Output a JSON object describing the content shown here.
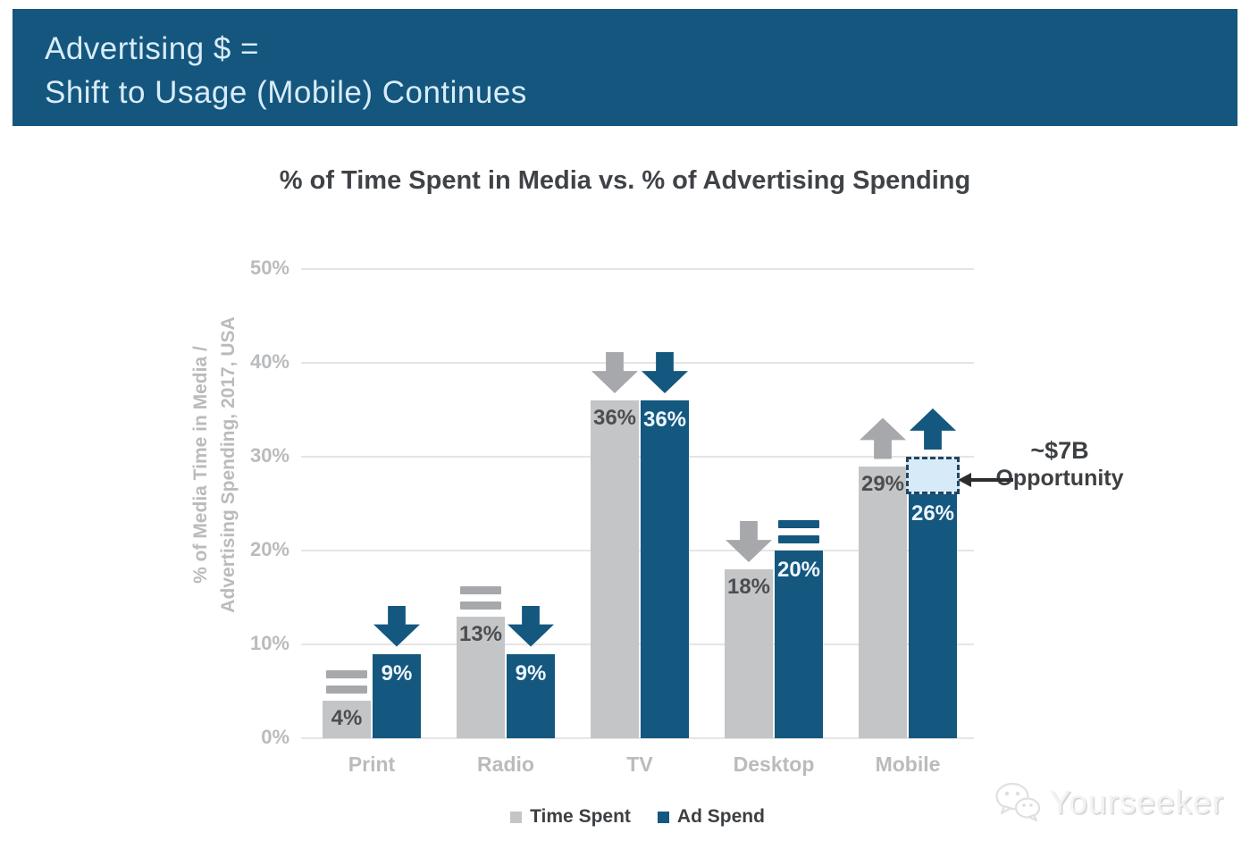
{
  "banner": {
    "line1": "Advertising $ =",
    "line2": "Shift to Usage (Mobile) Continues",
    "bg_color": "#14567d",
    "text_color": "#d8ecf8"
  },
  "chart_data": {
    "type": "bar",
    "title": "% of Time Spent in Media vs. % of Advertising Spending",
    "ylabel": "% of Media Time in Media / Advertising Spending, 2017, USA",
    "ylabel_lines": [
      "% of Media Time in Media /",
      "Advertising Spending, 2017, USA"
    ],
    "categories": [
      "Print",
      "Radio",
      "TV",
      "Desktop",
      "Mobile"
    ],
    "series": [
      {
        "name": "Time Spent",
        "color": "#c4c5c7",
        "label_color": "#4b4e51",
        "values": [
          4,
          13,
          36,
          18,
          29
        ],
        "trends": [
          "flat",
          "flat",
          "down",
          "down",
          "up"
        ],
        "trend_color": "#a6a8ab"
      },
      {
        "name": "Ad Spend",
        "color": "#14577f",
        "label_color": "#eef6fc",
        "values": [
          9,
          9,
          36,
          20,
          26
        ],
        "trends": [
          "down",
          "down",
          "down",
          "flat",
          "up"
        ],
        "trend_color": "#14577f"
      }
    ],
    "value_suffix": "%",
    "ylim": [
      0,
      50
    ],
    "yticks": [
      {
        "value": 0,
        "label": "0%"
      },
      {
        "value": 10,
        "label": "10%"
      },
      {
        "value": 20,
        "label": "20%"
      },
      {
        "value": 30,
        "label": "30%"
      },
      {
        "value": 40,
        "label": "40%"
      },
      {
        "value": 50,
        "label": "50%"
      }
    ],
    "grid": true,
    "legend_position": "bottom-center",
    "opportunity_box": {
      "category": "Mobile",
      "series": "Ad Spend",
      "from_pct": 26,
      "to_pct": 30,
      "fill": "#d7eaf7",
      "border": "#24455f"
    },
    "annotation": {
      "line1": "~$7B",
      "line2": "Opportunity"
    }
  },
  "watermark": {
    "text": "Yourseeker",
    "icon": "wechat-icon"
  }
}
